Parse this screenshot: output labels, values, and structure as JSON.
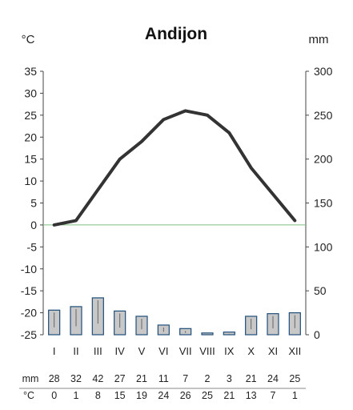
{
  "chart_data": {
    "type": "bar+line",
    "title": "Andijon",
    "left_unit": "°C",
    "right_unit": "mm",
    "months": [
      "I",
      "II",
      "III",
      "IV",
      "V",
      "VI",
      "VII",
      "VIII",
      "IX",
      "X",
      "XI",
      "XII"
    ],
    "temperature": {
      "ylim": [
        -25,
        35
      ],
      "ticks": [
        "35",
        "30",
        "25",
        "20",
        "15",
        "10",
        "5",
        "0",
        "-5",
        "-10",
        "-15",
        "-20",
        "-25"
      ],
      "tick_values": [
        35,
        30,
        25,
        20,
        15,
        10,
        5,
        0,
        -5,
        -10,
        -15,
        -20,
        -25
      ],
      "values": [
        0,
        1,
        8,
        15,
        19,
        24,
        26,
        25,
        21,
        13,
        7,
        1
      ],
      "line_color": "#333333"
    },
    "precipitation": {
      "ylim": [
        0,
        300
      ],
      "ticks": [
        "300",
        "250",
        "200",
        "150",
        "100",
        "50",
        "0"
      ],
      "tick_values": [
        300,
        250,
        200,
        150,
        100,
        50,
        0
      ],
      "values": [
        28,
        32,
        42,
        27,
        21,
        11,
        7,
        2,
        3,
        21,
        24,
        25
      ],
      "bar_fill": "#c8c8c8",
      "bar_stroke": "#1f4e79"
    },
    "zero_line_color": "#7fbf7f",
    "table": {
      "mm_label": "mm",
      "c_label": "°C",
      "mm_values": [
        "28",
        "32",
        "42",
        "27",
        "21",
        "11",
        "7",
        "2",
        "3",
        "21",
        "24",
        "25"
      ],
      "c_values": [
        "0",
        "1",
        "8",
        "15",
        "19",
        "24",
        "26",
        "25",
        "21",
        "13",
        "7",
        "1"
      ]
    }
  }
}
